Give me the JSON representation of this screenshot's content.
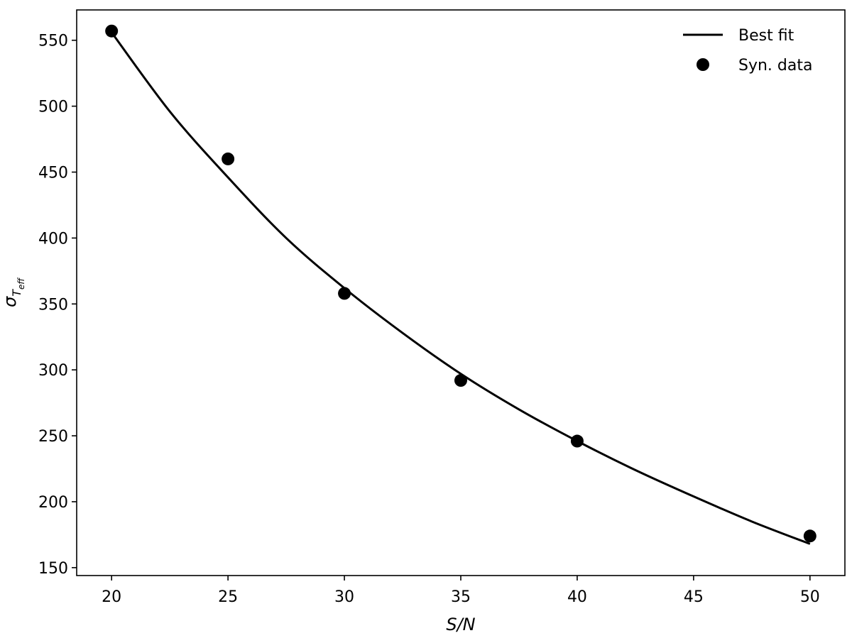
{
  "chart_data": {
    "type": "scatter",
    "xlabel": "S/N",
    "ylabel": {
      "base": "σ",
      "sub": "T",
      "subsub": "eff"
    },
    "xlim": [
      18.5,
      51.5
    ],
    "ylim": [
      144,
      573
    ],
    "xticks": [
      20,
      25,
      30,
      35,
      40,
      45,
      50
    ],
    "yticks": [
      150,
      200,
      250,
      300,
      350,
      400,
      450,
      500,
      550
    ],
    "grid": false,
    "legend_position": "top-right",
    "series": [
      {
        "name": "Best fit",
        "kind": "line",
        "color": "#000000",
        "x": [
          20,
          22.5,
          25,
          27.5,
          30,
          32.5,
          35,
          37.5,
          40,
          42.5,
          45,
          47.5,
          50
        ],
        "y": [
          556,
          496,
          446,
          400,
          362,
          328,
          297,
          270,
          246,
          224,
          204,
          185,
          168
        ]
      },
      {
        "name": "Syn. data",
        "kind": "scatter",
        "color": "#000000",
        "x": [
          20,
          25,
          30,
          35,
          40,
          50
        ],
        "y": [
          557,
          460,
          358,
          292,
          246,
          174
        ]
      }
    ]
  }
}
